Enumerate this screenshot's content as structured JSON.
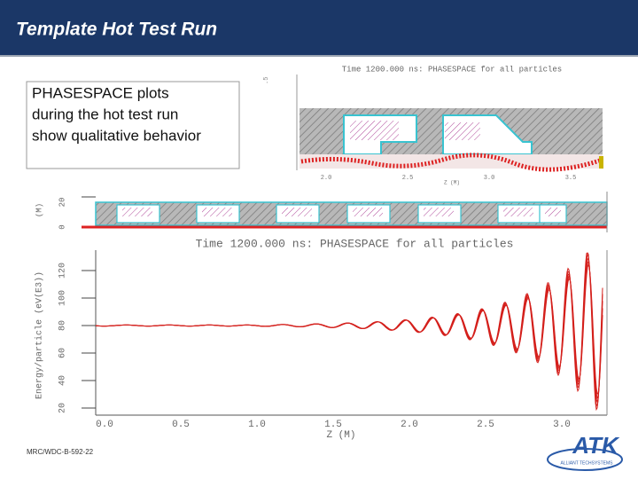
{
  "header": {
    "title": "Template Hot Test Run"
  },
  "text_box": {
    "lines": [
      "PHASESPACE plots",
      "during the hot test run",
      "show qualitative behavior"
    ]
  },
  "upper_plot": {
    "title": "Time 1200.000 ns:  PHASESPACE for all particles",
    "x_ticks": [
      "2.0",
      "2.5",
      "3.0",
      "3.5"
    ],
    "x_label": "Z (M)"
  },
  "middle_plot": {
    "y_label": "(M)",
    "y_ticks": [
      "20",
      "0"
    ]
  },
  "lower_plot": {
    "title": "Time 1200.000 ns:  PHASESPACE for all particles",
    "y_label": "Energy/particle (eV(E3))",
    "y_ticks": [
      "20",
      "40",
      "60",
      "80",
      "100",
      "120"
    ],
    "x_ticks": [
      "0.0",
      "0.5",
      "1.0",
      "1.5",
      "2.0",
      "2.5",
      "3.0"
    ],
    "x_label": "Z (M)"
  },
  "footer": {
    "code": "MRC/WDC-B-592-22"
  },
  "logo": {
    "name": "ATK",
    "tagline": "ALLIANT TECHSYSTEMS"
  }
}
